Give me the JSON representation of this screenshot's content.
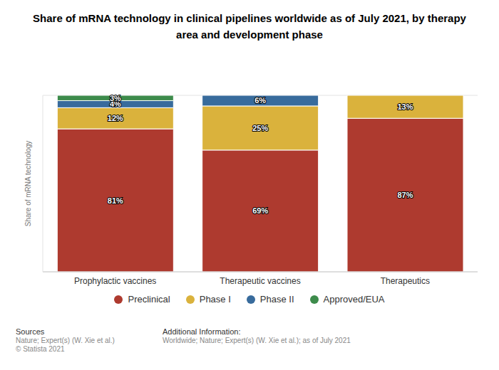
{
  "chart_data": {
    "type": "bar",
    "title": "Share of mRNA technology in clinical pipelines worldwide as of July 2021, by therapy area and development phase",
    "y_label": "Share of mRNA technology",
    "categories": [
      "Prophylactic vaccines",
      "Therapeutic vaccines",
      "Therapeutics"
    ],
    "series": [
      {
        "name": "Preclinical",
        "color": "#ae3a2f",
        "values": [
          81,
          69,
          87
        ],
        "value_labels": [
          "81%",
          "69%",
          "87%"
        ]
      },
      {
        "name": "Phase I",
        "color": "#dab23c",
        "values": [
          12,
          25,
          13
        ],
        "value_labels": [
          "12%",
          "25%",
          "13%"
        ]
      },
      {
        "name": "Phase II",
        "color": "#386b9c",
        "values": [
          4,
          6,
          null
        ],
        "value_labels": [
          "4%",
          "6%",
          null
        ]
      },
      {
        "name": "Approved/EUA",
        "color": "#3d8b4b",
        "values": [
          3,
          null,
          null
        ],
        "value_labels": [
          "3%",
          null,
          null
        ]
      }
    ],
    "ylim": [
      0,
      100
    ],
    "yticks": [
      0,
      25,
      50,
      75,
      100
    ],
    "grid": true,
    "stacked": true,
    "data_labels": true,
    "tick_labels": "x",
    "legend": "bottom",
    "footer": {
      "sources_title": "Sources",
      "sources": [
        "Nature; Expert(s) (W. Xie et al.)",
        "© Statista 2021"
      ],
      "info_title": "Additional Information:",
      "info": "Worldwide; Nature; Expert(s) (W. Xie et al.); as of July 2021"
    }
  }
}
